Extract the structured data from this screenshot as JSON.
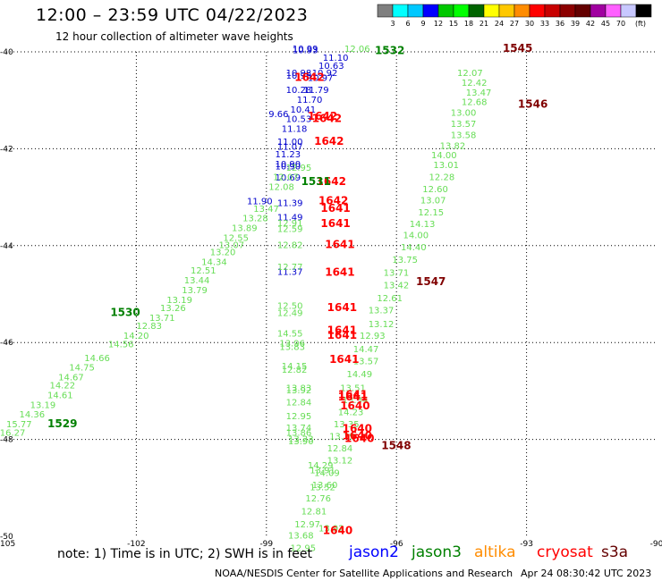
{
  "header": {
    "title": "12:00 – 23:59 UTC 04/22/2023",
    "subtitle": "12 hour collection of altimeter wave heights"
  },
  "legend_scale": {
    "unit_label": "(ft)",
    "colors": [
      "#7f7f7f",
      "#00ffff",
      "#00c8ff",
      "#0000ff",
      "#00c800",
      "#00ff00",
      "#006400",
      "#ffff00",
      "#ffc800",
      "#ff8c00",
      "#ff0000",
      "#c80000",
      "#8c0000",
      "#640000",
      "#a000a0",
      "#ff60ff",
      "#c8c8ff",
      "#000000"
    ],
    "labels": [
      "3",
      "6",
      "9",
      "12",
      "15",
      "18",
      "21",
      "24",
      "27",
      "30",
      "33",
      "36",
      "39",
      "42",
      "45",
      "70"
    ]
  },
  "footer": {
    "note": "note: 1) Time is in UTC; 2) SWH is in feet",
    "satellites": [
      {
        "name": "jason2",
        "color": "#0000ff"
      },
      {
        "name": "jason3",
        "color": "#008000"
      },
      {
        "name": "altika",
        "color": "#ff8c00"
      },
      {
        "name": "cryosat",
        "color": "#ff0000"
      },
      {
        "name": "s3a",
        "color": "#640000"
      }
    ],
    "credit": "NOAA/NESDIS Center for Satellite Applications and Research",
    "timestamp": "Apr 24 08:30:42 UTC 2023"
  },
  "chart_data": {
    "type": "scatter",
    "title": "12:00 – 23:59 UTC 04/22/2023",
    "subtitle": "12 hour collection of altimeter wave heights",
    "xlim": [
      -105,
      -90
    ],
    "ylim": [
      -50,
      -40
    ],
    "grid": true,
    "xticks": [
      "-105",
      "-102",
      "-99",
      "-96",
      "-93",
      "-90"
    ],
    "yticks": [
      "-40",
      "-42",
      "-44",
      "-46",
      "-48",
      "-50"
    ],
    "xtick_values": [
      -105,
      -102,
      -99,
      -96,
      -93,
      -90
    ],
    "ytick_values": [
      -40,
      -42,
      -44,
      -46,
      -48,
      -50
    ],
    "colors": {
      "jason2": "#0000cc",
      "jason3": "#66dd55",
      "cryosat": "#ff0000",
      "s3a": "#800000",
      "time_green": "#008000"
    },
    "series": [
      {
        "name": "jason2",
        "color": "#0000cc",
        "points": [
          [
            -98.4,
            -40.0,
            "10.99"
          ],
          [
            -98.4,
            -40.03,
            "10.93"
          ],
          [
            -97.7,
            -40.18,
            "11.10"
          ],
          [
            -97.8,
            -40.35,
            "10.63"
          ],
          [
            -97.95,
            -40.5,
            "10.92"
          ],
          [
            -98.05,
            -40.6,
            "10.97"
          ],
          [
            -98.55,
            -40.5,
            "10.98"
          ],
          [
            -98.55,
            -40.55,
            "10.95"
          ],
          [
            -98.15,
            -40.85,
            "11.79"
          ],
          [
            -98.3,
            -41.05,
            "11.70"
          ],
          [
            -98.45,
            -41.25,
            "10.41"
          ],
          [
            -98.55,
            -41.45,
            "10.53"
          ],
          [
            -98.55,
            -40.85,
            "10.28"
          ],
          [
            -98.95,
            -41.35,
            "9.66"
          ],
          [
            -98.65,
            -41.65,
            "11.18"
          ],
          [
            -98.75,
            -41.92,
            "11.00"
          ],
          [
            -98.75,
            -42.02,
            "11.07"
          ],
          [
            -98.8,
            -42.18,
            "11.23"
          ],
          [
            -98.8,
            -42.38,
            "10.90"
          ],
          [
            -98.8,
            -42.43,
            "10.90"
          ],
          [
            -98.8,
            -42.66,
            "10.69"
          ],
          [
            -99.45,
            -43.15,
            "11.90"
          ],
          [
            -98.75,
            -43.18,
            "11.39"
          ],
          [
            -98.75,
            -43.48,
            "11.49"
          ],
          [
            -98.75,
            -44.6,
            "11.37"
          ]
        ]
      },
      {
        "name": "jason3",
        "color": "#66dd55",
        "points": [
          [
            -97.2,
            -40.0,
            "12.06"
          ],
          [
            -98.55,
            -42.45,
            "12.95"
          ],
          [
            -98.85,
            -42.65,
            "12.07"
          ],
          [
            -98.95,
            -42.85,
            "12.08"
          ],
          [
            -99.3,
            -43.3,
            "13.47"
          ],
          [
            -99.55,
            -43.5,
            "13.28"
          ],
          [
            -99.8,
            -43.7,
            "13.89"
          ],
          [
            -100.0,
            -43.9,
            "12.55"
          ],
          [
            -100.1,
            -44.05,
            "13.07"
          ],
          [
            -100.3,
            -44.2,
            "13.20"
          ],
          [
            -100.5,
            -44.4,
            "14.34"
          ],
          [
            -100.75,
            -44.58,
            "12.51"
          ],
          [
            -100.9,
            -44.78,
            "13.44"
          ],
          [
            -100.95,
            -44.98,
            "13.79"
          ],
          [
            -101.3,
            -45.18,
            "13.19"
          ],
          [
            -101.45,
            -45.35,
            "13.26"
          ],
          [
            -101.7,
            -45.55,
            "13.71"
          ],
          [
            -102.0,
            -45.72,
            "12.83"
          ],
          [
            -102.3,
            -45.92,
            "14.20"
          ],
          [
            -102.65,
            -46.1,
            "14.56"
          ],
          [
            -103.2,
            -46.38,
            "14.66"
          ],
          [
            -103.55,
            -46.58,
            "14.75"
          ],
          [
            -103.8,
            -46.78,
            "14.67"
          ],
          [
            -104.0,
            -46.95,
            "14.22"
          ],
          [
            -104.05,
            -47.15,
            "14.61"
          ],
          [
            -104.45,
            -47.35,
            "13.19"
          ],
          [
            -104.7,
            -47.55,
            "14.36"
          ],
          [
            -105.0,
            -47.75,
            "15.77"
          ],
          [
            -105.15,
            -47.92,
            "16.27"
          ],
          [
            -98.75,
            -43.6,
            "12.91"
          ],
          [
            -98.75,
            -43.72,
            "12.59"
          ],
          [
            -98.75,
            -44.05,
            "12.82"
          ],
          [
            -98.75,
            -44.5,
            "12.77"
          ],
          [
            -98.75,
            -45.3,
            "12.50"
          ],
          [
            -98.75,
            -45.45,
            "12.49"
          ],
          [
            -98.75,
            -45.88,
            "14.55"
          ],
          [
            -98.7,
            -46.08,
            "13.96"
          ],
          [
            -98.7,
            -46.15,
            "13.83"
          ],
          [
            -98.65,
            -46.55,
            "14.15"
          ],
          [
            -98.65,
            -46.62,
            "12.82"
          ],
          [
            -98.55,
            -47.0,
            "13.83"
          ],
          [
            -98.55,
            -47.05,
            "13.92"
          ],
          [
            -98.55,
            -47.3,
            "12.84"
          ],
          [
            -98.55,
            -47.58,
            "12.95"
          ],
          [
            -98.55,
            -47.82,
            "13.74"
          ],
          [
            -98.55,
            -47.92,
            "13.86"
          ],
          [
            -98.5,
            -48.05,
            "13.23"
          ],
          [
            -98.5,
            -48.1,
            "13.90"
          ],
          [
            -98.05,
            -48.6,
            "14.29"
          ],
          [
            -98.0,
            -48.7,
            "13.91"
          ],
          [
            -98.0,
            -49.05,
            "13.52"
          ],
          [
            -97.8,
            -49.9,
            "13.92"
          ],
          [
            -94.6,
            -40.5,
            "12.07"
          ],
          [
            -94.5,
            -40.7,
            "12.42"
          ],
          [
            -94.4,
            -40.9,
            "13.47"
          ],
          [
            -94.5,
            -41.1,
            "12.68"
          ],
          [
            -94.75,
            -41.32,
            "13.00"
          ],
          [
            -94.75,
            -41.55,
            "13.57"
          ],
          [
            -94.75,
            -41.78,
            "13.58"
          ],
          [
            -95.0,
            -42.0,
            "13.82"
          ],
          [
            -95.2,
            -42.2,
            "14.00"
          ],
          [
            -95.15,
            -42.4,
            "13.01"
          ],
          [
            -95.25,
            -42.65,
            "12.28"
          ],
          [
            -95.4,
            -42.9,
            "12.60"
          ],
          [
            -95.45,
            -43.13,
            "13.07"
          ],
          [
            -95.5,
            -43.38,
            "12.15"
          ],
          [
            -95.7,
            -43.62,
            "14.13"
          ],
          [
            -95.85,
            -43.85,
            "14.00"
          ],
          [
            -95.9,
            -44.1,
            "14.40"
          ],
          [
            -96.1,
            -44.35,
            "13.75"
          ],
          [
            -96.3,
            -44.62,
            "13.71"
          ],
          [
            -96.3,
            -44.88,
            "13.42"
          ],
          [
            -96.45,
            -45.15,
            "12.61"
          ],
          [
            -96.65,
            -45.4,
            "13.37"
          ],
          [
            -96.65,
            -45.68,
            "13.12"
          ],
          [
            -96.85,
            -45.92,
            "12.93"
          ],
          [
            -97.0,
            -46.2,
            "14.47"
          ],
          [
            -97.0,
            -46.45,
            "13.57"
          ],
          [
            -97.15,
            -46.72,
            "14.49"
          ],
          [
            -97.3,
            -47.0,
            "13.51"
          ],
          [
            -97.25,
            -47.25,
            "13.34"
          ],
          [
            -97.35,
            -47.5,
            "14.23"
          ],
          [
            -97.45,
            -47.75,
            "13.35"
          ],
          [
            -97.55,
            -48.0,
            "13.39"
          ],
          [
            -97.6,
            -48.25,
            "12.84"
          ],
          [
            -97.6,
            -48.5,
            "13.12"
          ],
          [
            -97.9,
            -48.75,
            "14.09"
          ],
          [
            -97.95,
            -49.0,
            "13.60"
          ],
          [
            -98.1,
            -49.28,
            "12.76"
          ],
          [
            -98.2,
            -49.55,
            "12.81"
          ],
          [
            -98.35,
            -49.82,
            "12.97"
          ],
          [
            -98.5,
            -50.05,
            "13.68"
          ],
          [
            -98.45,
            -50.3,
            "12.95"
          ]
        ]
      },
      {
        "name": "cryosat",
        "color": "#ff0000",
        "points": [
          [
            -98.35,
            -40.6,
            "1642"
          ],
          [
            -98.05,
            -41.4,
            "1642"
          ],
          [
            -97.95,
            -41.45,
            "1642"
          ],
          [
            -97.9,
            -41.92,
            "1642"
          ],
          [
            -97.85,
            -42.75,
            "1642"
          ],
          [
            -97.8,
            -43.15,
            "1642"
          ],
          [
            -97.75,
            -43.3,
            "1641"
          ],
          [
            -97.75,
            -43.62,
            "1641"
          ],
          [
            -97.65,
            -44.05,
            "1641"
          ],
          [
            -97.65,
            -44.62,
            "1641"
          ],
          [
            -97.6,
            -45.35,
            "1641"
          ],
          [
            -97.6,
            -45.82,
            "1641"
          ],
          [
            -97.6,
            -45.92,
            "1641"
          ],
          [
            -97.55,
            -46.42,
            "1641"
          ],
          [
            -97.35,
            -47.15,
            "1641"
          ],
          [
            -97.35,
            -47.2,
            "1641"
          ],
          [
            -97.3,
            -47.38,
            "1640"
          ],
          [
            -97.25,
            -47.85,
            "1640"
          ],
          [
            -97.25,
            -48.0,
            "1640"
          ],
          [
            -97.2,
            -48.05,
            "1640"
          ],
          [
            -97.7,
            -49.95,
            "1640"
          ]
        ]
      },
      {
        "name": "s3a",
        "color": "#800000",
        "points": [
          [
            -93.55,
            -40.0,
            "1545"
          ],
          [
            -93.2,
            -41.15,
            "1546"
          ],
          [
            -95.55,
            -44.82,
            "1547"
          ],
          [
            -96.35,
            -48.2,
            "1548"
          ]
        ]
      },
      {
        "name": "jason3_time",
        "color": "#008000",
        "points": [
          [
            -96.5,
            -40.05,
            "1532"
          ],
          [
            -98.2,
            -42.75,
            "1531"
          ],
          [
            -102.6,
            -45.45,
            "1530"
          ],
          [
            -104.05,
            -47.75,
            "1529"
          ]
        ]
      }
    ]
  }
}
